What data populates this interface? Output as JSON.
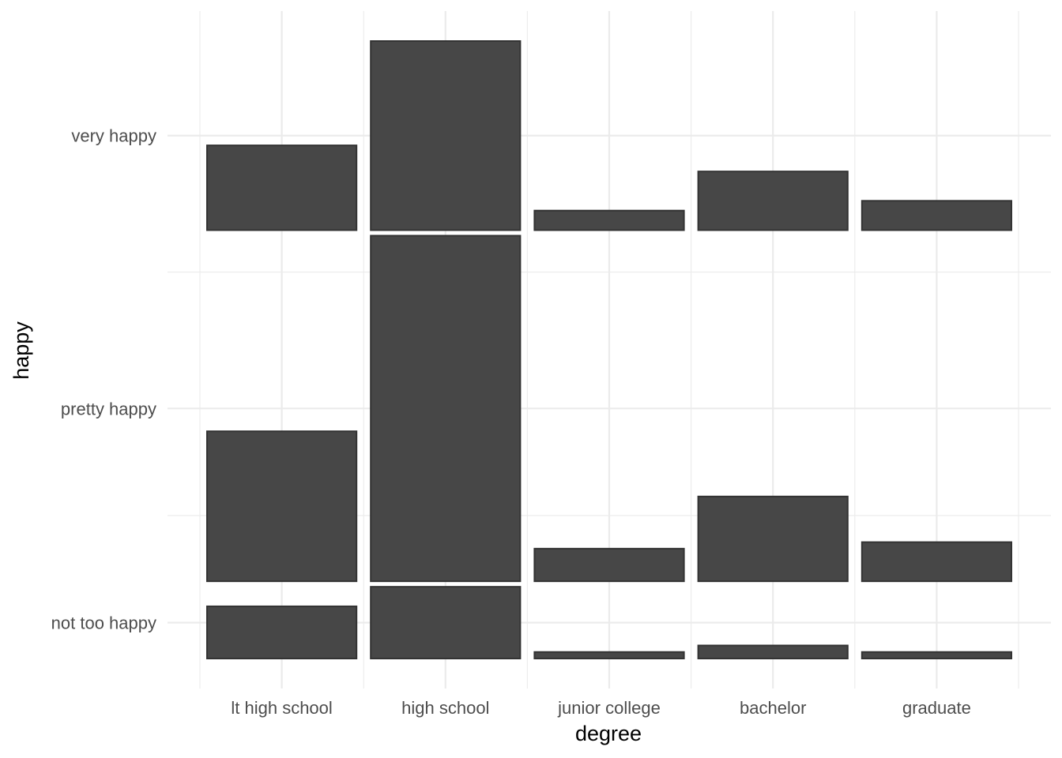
{
  "chart_data": {
    "type": "bar",
    "subtype": "stacked-mosaic",
    "title": "",
    "xlabel": "degree",
    "ylabel": "happy",
    "categories": [
      "lt high school",
      "high school",
      "junior college",
      "bachelor",
      "graduate"
    ],
    "groups": [
      "not too happy",
      "pretty happy",
      "very happy"
    ],
    "series": [
      {
        "name": "not too happy",
        "values": [
          0.08,
          0.11,
          0.01,
          0.02,
          0.01
        ]
      },
      {
        "name": "pretty happy",
        "values": [
          0.23,
          0.53,
          0.05,
          0.13,
          0.06
        ]
      },
      {
        "name": "very happy",
        "values": [
          0.13,
          0.29,
          0.03,
          0.09,
          0.045
        ]
      }
    ],
    "legend": "none",
    "grid": true,
    "bar_color": "#474747",
    "bar_border_color": "#333333",
    "grid_color": "#ebebeb"
  }
}
